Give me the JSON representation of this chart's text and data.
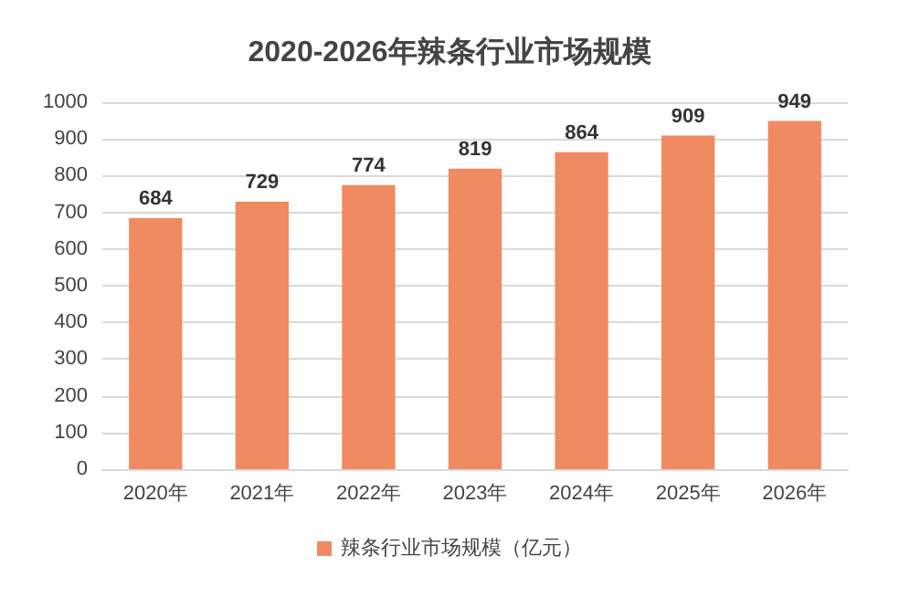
{
  "chart_data": {
    "type": "bar",
    "title": "2020-2026年辣条行业市场规模",
    "categories": [
      "2020年",
      "2021年",
      "2022年",
      "2023年",
      "2024年",
      "2025年",
      "2026年"
    ],
    "series": [
      {
        "name": "辣条行业市场规模（亿元）",
        "color": "#f08a60",
        "values": [
          684,
          729,
          774,
          819,
          864,
          909,
          949
        ]
      }
    ],
    "ylim": [
      0,
      1000
    ],
    "yticks": [
      0,
      100,
      200,
      300,
      400,
      500,
      600,
      700,
      800,
      900,
      1000
    ],
    "grid": "y",
    "legend": "bottom",
    "data_labels": true
  }
}
